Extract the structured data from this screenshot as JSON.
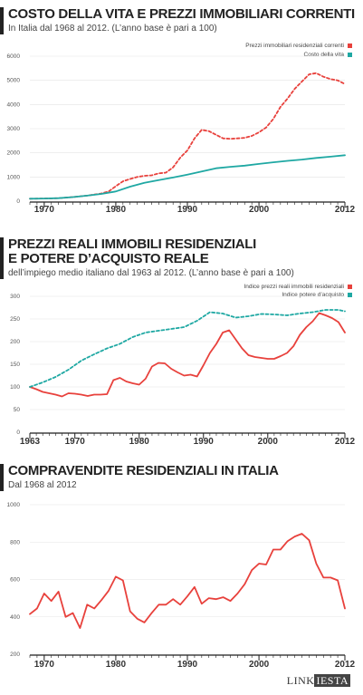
{
  "colors": {
    "red": "#e8413c",
    "teal": "#1fa8a3"
  },
  "chart_data": [
    {
      "type": "line",
      "title": "COSTO DELLA VITA E PREZZI IMMOBILIARI CORRENTI",
      "subtitle": "In Italia dal 1968 al 2012. (L’anno base è pari a 100)",
      "xlim": [
        1968,
        2012
      ],
      "ylim": [
        0,
        6000
      ],
      "x_ticks": [
        "1970",
        "1980",
        "1990",
        "2000",
        "2012"
      ],
      "x_tick_values": [
        1970,
        1980,
        1990,
        2000,
        2012
      ],
      "y_ticks": [
        "0",
        "1000",
        "2000",
        "3000",
        "4000",
        "5000",
        "6000"
      ],
      "y_tick_values": [
        0,
        1000,
        2000,
        3000,
        4000,
        5000,
        6000
      ],
      "legend": "top-right",
      "series": [
        {
          "name": "Prezzi immobiliari residenziali correnti",
          "color": "#e8413c",
          "dashed": true,
          "x": [
            1968,
            1970,
            1972,
            1974,
            1976,
            1978,
            1979,
            1980,
            1981,
            1982,
            1983,
            1984,
            1985,
            1986,
            1987,
            1988,
            1989,
            1990,
            1991,
            1992,
            1993,
            1994,
            1995,
            1996,
            1997,
            1998,
            1999,
            2000,
            2001,
            2002,
            2003,
            2004,
            2005,
            2006,
            2007,
            2008,
            2009,
            2010,
            2011,
            2012
          ],
          "values": [
            100,
            110,
            125,
            170,
            230,
            320,
            400,
            620,
            820,
            920,
            1000,
            1050,
            1070,
            1150,
            1180,
            1400,
            1800,
            2100,
            2600,
            2950,
            2900,
            2750,
            2600,
            2580,
            2600,
            2620,
            2700,
            2850,
            3050,
            3400,
            3900,
            4250,
            4650,
            4950,
            5250,
            5300,
            5150,
            5050,
            5000,
            4850
          ]
        },
        {
          "name": "Costo della vita",
          "color": "#1fa8a3",
          "dashed": false,
          "x": [
            1968,
            1970,
            1972,
            1974,
            1976,
            1978,
            1980,
            1982,
            1984,
            1986,
            1988,
            1990,
            1992,
            1994,
            1996,
            1998,
            2000,
            2002,
            2004,
            2006,
            2008,
            2010,
            2012
          ],
          "values": [
            100,
            110,
            125,
            170,
            230,
            300,
            400,
            600,
            760,
            870,
            980,
            1100,
            1230,
            1360,
            1420,
            1470,
            1540,
            1610,
            1670,
            1720,
            1790,
            1840,
            1900
          ]
        }
      ]
    },
    {
      "type": "line",
      "title": "PREZZI REALI IMMOBILI RESIDENZIALI E POTERE D’ACQUISTO REALE",
      "title_lines": [
        "PREZZI REALI IMMOBILI RESIDENZIALI",
        "E POTERE D’ACQUISTO REALE"
      ],
      "subtitle": "dell’impiego medio italiano dal 1963 al 2012. (L’anno base è pari a 100)",
      "xlim": [
        1963,
        2012
      ],
      "ylim": [
        0,
        300
      ],
      "x_ticks": [
        "1963",
        "1970",
        "1980",
        "1990",
        "2000",
        "2012"
      ],
      "x_tick_values": [
        1963,
        1970,
        1980,
        1990,
        2000,
        2012
      ],
      "y_ticks": [
        "0",
        "50",
        "100",
        "150",
        "200",
        "250",
        "300"
      ],
      "y_tick_values": [
        0,
        50,
        100,
        150,
        200,
        250,
        300
      ],
      "legend": "top-right",
      "series": [
        {
          "name": "Indice prezzi reali immobili residenziali",
          "color": "#e8413c",
          "dashed": false,
          "x": [
            1963,
            1964,
            1965,
            1966,
            1967,
            1968,
            1969,
            1970,
            1971,
            1972,
            1973,
            1974,
            1975,
            1976,
            1977,
            1978,
            1979,
            1980,
            1981,
            1982,
            1983,
            1984,
            1985,
            1986,
            1987,
            1988,
            1989,
            1990,
            1991,
            1992,
            1993,
            1994,
            1995,
            1996,
            1997,
            1998,
            1999,
            2000,
            2001,
            2002,
            2003,
            2004,
            2005,
            2006,
            2007,
            2008,
            2009,
            2010,
            2011,
            2012
          ],
          "values": [
            100,
            95,
            89,
            86,
            83,
            79,
            86,
            85,
            83,
            80,
            83,
            83,
            84,
            115,
            120,
            112,
            108,
            105,
            118,
            145,
            153,
            152,
            140,
            132,
            125,
            127,
            123,
            148,
            175,
            195,
            220,
            225,
            205,
            185,
            170,
            166,
            164,
            162,
            162,
            168,
            175,
            190,
            215,
            232,
            245,
            263,
            258,
            252,
            243,
            220
          ]
        },
        {
          "name": "Indice potere d’acquisto",
          "color": "#1fa8a3",
          "dashed": true,
          "x": [
            1963,
            1965,
            1967,
            1969,
            1971,
            1973,
            1975,
            1977,
            1979,
            1981,
            1983,
            1985,
            1987,
            1989,
            1991,
            1993,
            1995,
            1997,
            1999,
            2001,
            2003,
            2005,
            2007,
            2009,
            2011,
            2012
          ],
          "values": [
            100,
            110,
            122,
            138,
            158,
            172,
            185,
            195,
            210,
            220,
            224,
            228,
            232,
            246,
            265,
            262,
            253,
            256,
            261,
            260,
            258,
            262,
            265,
            270,
            270,
            267
          ]
        }
      ]
    },
    {
      "type": "line",
      "title": "COMPRAVENDITE RESIDENZIALI IN ITALIA",
      "subtitle": "Dal 1968 al 2012",
      "xlim": [
        1968,
        2012
      ],
      "ylim": [
        200,
        1000
      ],
      "x_ticks": [
        "1970",
        "1980",
        "1990",
        "2000",
        "2012"
      ],
      "x_tick_values": [
        1970,
        1980,
        1990,
        2000,
        2012
      ],
      "y_ticks": [
        "200",
        "400",
        "600",
        "800",
        "1000"
      ],
      "y_tick_values": [
        200,
        400,
        600,
        800,
        1000
      ],
      "series": [
        {
          "name": "",
          "color": "#e8413c",
          "dashed": false,
          "x": [
            1968,
            1969,
            1970,
            1971,
            1972,
            1973,
            1974,
            1975,
            1976,
            1977,
            1978,
            1979,
            1980,
            1981,
            1982,
            1983,
            1984,
            1985,
            1986,
            1987,
            1988,
            1989,
            1990,
            1991,
            1992,
            1993,
            1994,
            1995,
            1996,
            1997,
            1998,
            1999,
            2000,
            2001,
            2002,
            2003,
            2004,
            2005,
            2006,
            2007,
            2008,
            2009,
            2010,
            2011,
            2012
          ],
          "values": [
            415,
            445,
            525,
            485,
            535,
            400,
            420,
            340,
            465,
            445,
            490,
            540,
            615,
            595,
            430,
            390,
            370,
            420,
            465,
            465,
            495,
            465,
            510,
            560,
            470,
            500,
            495,
            505,
            485,
            525,
            575,
            650,
            685,
            680,
            760,
            760,
            805,
            830,
            845,
            810,
            685,
            610,
            610,
            595,
            445
          ]
        }
      ]
    }
  ],
  "footer": {
    "logo_left": "LINK",
    "logo_right": "IESTA"
  }
}
